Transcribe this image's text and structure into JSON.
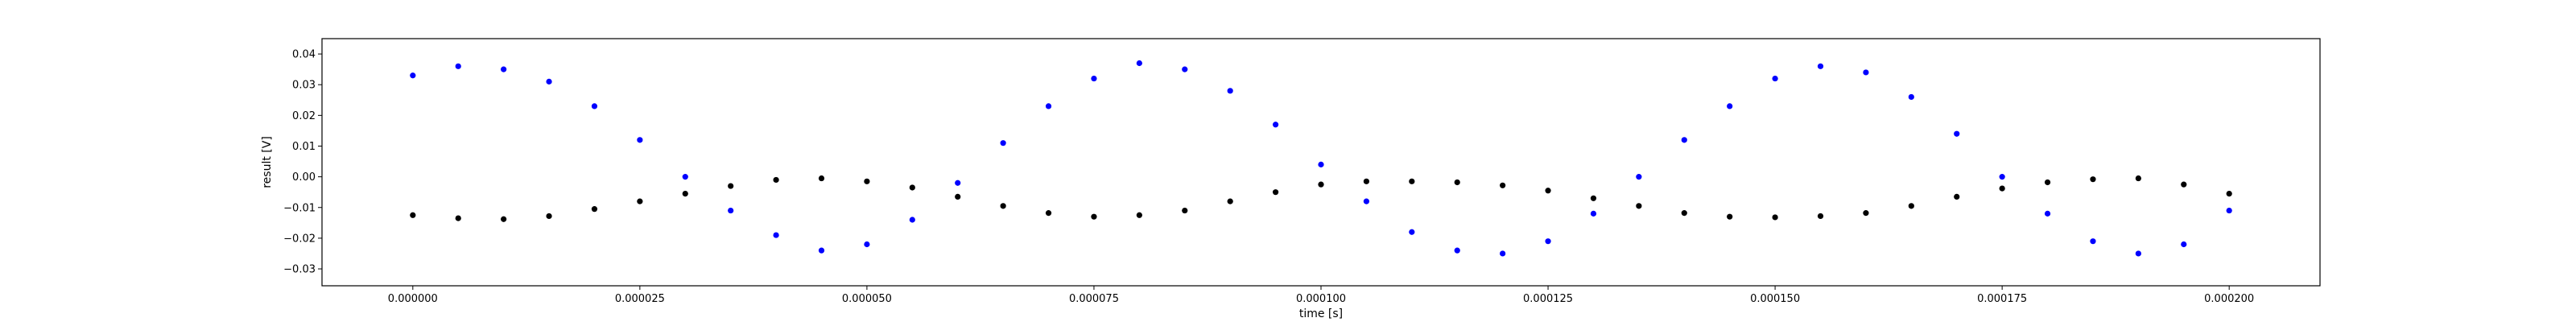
{
  "chart_data": {
    "type": "scatter",
    "title": "",
    "xlabel": "time [s]",
    "ylabel": "result [V]",
    "xlim": [
      -1e-05,
      0.00021
    ],
    "ylim": [
      -0.0355,
      0.045
    ],
    "grid": false,
    "x_ticks": [
      0.0,
      2.5e-05,
      5e-05,
      7.5e-05,
      0.0001,
      0.000125,
      0.00015,
      0.000175,
      0.0002
    ],
    "x_tick_labels": [
      "0.000000",
      "0.000025",
      "0.000050",
      "0.000075",
      "0.000100",
      "0.000125",
      "0.000150",
      "0.000175",
      "0.000200"
    ],
    "y_ticks": [
      -0.03,
      -0.02,
      -0.01,
      0.0,
      0.01,
      0.02,
      0.03,
      0.04
    ],
    "y_tick_labels": [
      "−0.03",
      "−0.02",
      "−0.01",
      "0.00",
      "0.01",
      "0.02",
      "0.03",
      "0.04"
    ],
    "series": [
      {
        "color": "#0000ff",
        "x": [
          0.0,
          5e-06,
          1e-05,
          1.5e-05,
          2e-05,
          2.5e-05,
          3e-05,
          3.5e-05,
          4e-05,
          4.5e-05,
          5e-05,
          5.5e-05,
          6e-05,
          6.5e-05,
          7e-05,
          7.5e-05,
          8e-05,
          8.5e-05,
          9e-05,
          9.5e-05,
          0.0001,
          0.000105,
          0.00011,
          0.000115,
          0.00012,
          0.000125,
          0.00013,
          0.000135,
          0.00014,
          0.000145,
          0.00015,
          0.000155,
          0.00016,
          0.000165,
          0.00017,
          0.000175,
          0.00018,
          0.000185,
          0.00019,
          0.000195,
          0.0002
        ],
        "y": [
          0.033,
          0.036,
          0.035,
          0.031,
          0.023,
          0.012,
          0.0,
          -0.011,
          -0.019,
          -0.024,
          -0.022,
          -0.014,
          -0.002,
          0.011,
          0.023,
          0.032,
          0.037,
          0.035,
          0.028,
          0.017,
          0.004,
          -0.008,
          -0.018,
          -0.024,
          -0.025,
          -0.021,
          -0.012,
          0.0,
          0.012,
          0.023,
          0.032,
          0.036,
          0.034,
          0.026,
          0.014,
          0.0,
          -0.012,
          -0.021,
          -0.025,
          -0.022,
          -0.011
        ]
      },
      {
        "color": "#000000",
        "x": [
          0.0,
          5e-06,
          1e-05,
          1.5e-05,
          2e-05,
          2.5e-05,
          3e-05,
          3.5e-05,
          4e-05,
          4.5e-05,
          5e-05,
          5.5e-05,
          6e-05,
          6.5e-05,
          7e-05,
          7.5e-05,
          8e-05,
          8.5e-05,
          9e-05,
          9.5e-05,
          0.0001,
          0.000105,
          0.00011,
          0.000115,
          0.00012,
          0.000125,
          0.00013,
          0.000135,
          0.00014,
          0.000145,
          0.00015,
          0.000155,
          0.00016,
          0.000165,
          0.00017,
          0.000175,
          0.00018,
          0.000185,
          0.00019,
          0.000195,
          0.0002
        ],
        "y": [
          -0.0125,
          -0.0135,
          -0.0138,
          -0.0128,
          -0.0105,
          -0.008,
          -0.0055,
          -0.003,
          -0.001,
          -0.0005,
          -0.0015,
          -0.0035,
          -0.0065,
          -0.0095,
          -0.0118,
          -0.013,
          -0.0125,
          -0.011,
          -0.008,
          -0.005,
          -0.0025,
          -0.0015,
          -0.0015,
          -0.0018,
          -0.0028,
          -0.0045,
          -0.007,
          -0.0095,
          -0.0118,
          -0.013,
          -0.0132,
          -0.0128,
          -0.0118,
          -0.0095,
          -0.0065,
          -0.0038,
          -0.0018,
          -0.0008,
          -0.0005,
          -0.0025,
          -0.0055
        ]
      }
    ]
  }
}
